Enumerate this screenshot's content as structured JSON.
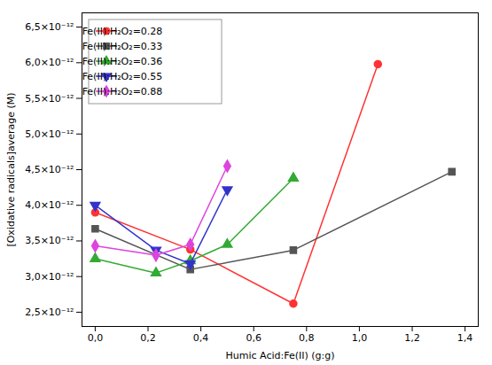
{
  "chart_data": {
    "type": "line",
    "x_label": "Humic Acid:Fe(II) (g:g)",
    "y_label": "[Oxidative radicals]average (M)",
    "series": [
      {
        "name": "Fe(II):H₂O₂=0.28",
        "color": "#ff3333",
        "marker": "circle",
        "x": [
          0.0,
          0.36,
          0.75,
          1.07
        ],
        "values": [
          3.9e-12,
          3.38e-12,
          2.62e-12,
          5.98e-12
        ]
      },
      {
        "name": "Fe(II):H₂O₂=0.33",
        "color": "#555555",
        "marker": "square",
        "x": [
          0.0,
          0.36,
          0.75,
          1.35
        ],
        "values": [
          3.67e-12,
          3.1e-12,
          3.37e-12,
          4.47e-12
        ]
      },
      {
        "name": "Fe(II):H₂O₂=0.36",
        "color": "#33aa33",
        "marker": "triangle-up",
        "x": [
          0.0,
          0.23,
          0.36,
          0.5,
          0.75
        ],
        "values": [
          3.25e-12,
          3.05e-12,
          3.22e-12,
          3.45e-12,
          4.38e-12
        ]
      },
      {
        "name": "Fe(II):H₂O₂=0.55",
        "color": "#3333cc",
        "marker": "triangle-down",
        "x": [
          0.0,
          0.23,
          0.36,
          0.5
        ],
        "values": [
          4e-12,
          3.37e-12,
          3.18e-12,
          4.22e-12
        ]
      },
      {
        "name": "Fe(II):H₂O₂=0.88",
        "color": "#dd44dd",
        "marker": "diamond",
        "x": [
          0.0,
          0.23,
          0.36,
          0.5
        ],
        "values": [
          3.43e-12,
          3.3e-12,
          3.45e-12,
          4.55e-12
        ]
      }
    ],
    "xlim": [
      -0.05,
      1.45
    ],
    "ylim": [
      2.3e-12,
      6.7e-12
    ],
    "xticks": [
      {
        "value": 0.0,
        "label": "0,0"
      },
      {
        "value": 0.2,
        "label": "0,2"
      },
      {
        "value": 0.4,
        "label": "0,4"
      },
      {
        "value": 0.6,
        "label": "0,6"
      },
      {
        "value": 0.8,
        "label": "0,8"
      },
      {
        "value": 1.0,
        "label": "1,0"
      },
      {
        "value": 1.2,
        "label": "1,2"
      },
      {
        "value": 1.4,
        "label": "1,4"
      }
    ],
    "yticks": [
      {
        "value": 2.5e-12,
        "label": "2,5×10⁻¹²"
      },
      {
        "value": 3e-12,
        "label": "3,0×10⁻¹²"
      },
      {
        "value": 3.5e-12,
        "label": "3,5×10⁻¹²"
      },
      {
        "value": 4e-12,
        "label": "4,0×10⁻¹²"
      },
      {
        "value": 4.5e-12,
        "label": "4,5×10⁻¹²"
      },
      {
        "value": 5e-12,
        "label": "5,0×10⁻¹²"
      },
      {
        "value": 5.5e-12,
        "label": "5,5×10⁻¹²"
      },
      {
        "value": 6e-12,
        "label": "6,0×10⁻¹²"
      },
      {
        "value": 6.5e-12,
        "label": "6,5×10⁻¹²"
      }
    ],
    "legend": "upper left"
  }
}
